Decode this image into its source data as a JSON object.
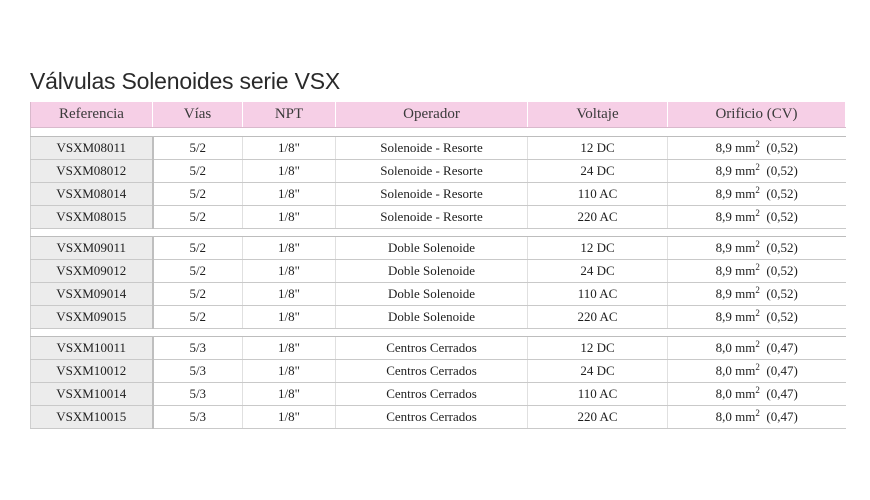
{
  "title": "Válvulas Solenoides serie VSX",
  "headers": [
    "Referencia",
    "Vías",
    "NPT",
    "Operador",
    "Voltaje",
    "Orificio (CV)"
  ],
  "groups": [
    {
      "rows": [
        {
          "ref": "VSXM08011",
          "vias": "5/2",
          "npt": "1/8\"",
          "operador": "Solenoide - Resorte",
          "voltaje": "12 DC",
          "orificio_pre": "8,9 mm",
          "orificio_sup": "2",
          "orificio_post": "  (0,52)"
        },
        {
          "ref": "VSXM08012",
          "vias": "5/2",
          "npt": "1/8\"",
          "operador": "Solenoide - Resorte",
          "voltaje": "24 DC",
          "orificio_pre": "8,9 mm",
          "orificio_sup": "2",
          "orificio_post": "  (0,52)"
        },
        {
          "ref": "VSXM08014",
          "vias": "5/2",
          "npt": "1/8\"",
          "operador": "Solenoide - Resorte",
          "voltaje": "110 AC",
          "orificio_pre": "8,9 mm",
          "orificio_sup": "2",
          "orificio_post": "  (0,52)"
        },
        {
          "ref": "VSXM08015",
          "vias": "5/2",
          "npt": "1/8\"",
          "operador": "Solenoide - Resorte",
          "voltaje": "220 AC",
          "orificio_pre": "8,9 mm",
          "orificio_sup": "2",
          "orificio_post": "  (0,52)"
        }
      ]
    },
    {
      "rows": [
        {
          "ref": "VSXM09011",
          "vias": "5/2",
          "npt": "1/8\"",
          "operador": "Doble Solenoide",
          "voltaje": "12 DC",
          "orificio_pre": "8,9 mm",
          "orificio_sup": "2",
          "orificio_post": "  (0,52)"
        },
        {
          "ref": "VSXM09012",
          "vias": "5/2",
          "npt": "1/8\"",
          "operador": "Doble Solenoide",
          "voltaje": "24 DC",
          "orificio_pre": "8,9 mm",
          "orificio_sup": "2",
          "orificio_post": "  (0,52)"
        },
        {
          "ref": "VSXM09014",
          "vias": "5/2",
          "npt": "1/8\"",
          "operador": "Doble Solenoide",
          "voltaje": "110 AC",
          "orificio_pre": "8,9 mm",
          "orificio_sup": "2",
          "orificio_post": "  (0,52)"
        },
        {
          "ref": "VSXM09015",
          "vias": "5/2",
          "npt": "1/8\"",
          "operador": "Doble Solenoide",
          "voltaje": "220 AC",
          "orificio_pre": "8,9 mm",
          "orificio_sup": "2",
          "orificio_post": "  (0,52)"
        }
      ]
    },
    {
      "rows": [
        {
          "ref": "VSXM10011",
          "vias": "5/3",
          "npt": "1/8\"",
          "operador": "Centros Cerrados",
          "voltaje": "12 DC",
          "orificio_pre": "8,0 mm",
          "orificio_sup": "2",
          "orificio_post": "  (0,47)"
        },
        {
          "ref": "VSXM10012",
          "vias": "5/3",
          "npt": "1/8\"",
          "operador": "Centros Cerrados",
          "voltaje": "24 DC",
          "orificio_pre": "8,0 mm",
          "orificio_sup": "2",
          "orificio_post": "  (0,47)"
        },
        {
          "ref": "VSXM10014",
          "vias": "5/3",
          "npt": "1/8\"",
          "operador": "Centros Cerrados",
          "voltaje": "110 AC",
          "orificio_pre": "8,0 mm",
          "orificio_sup": "2",
          "orificio_post": "  (0,47)"
        },
        {
          "ref": "VSXM10015",
          "vias": "5/3",
          "npt": "1/8\"",
          "operador": "Centros Cerrados",
          "voltaje": "220 AC",
          "orificio_pre": "8,0 mm",
          "orificio_sup": "2",
          "orificio_post": "  (0,47)"
        }
      ]
    }
  ],
  "colors": {
    "header_bg": "#f6cfe6",
    "ref_cell_bg": "#ececec"
  }
}
